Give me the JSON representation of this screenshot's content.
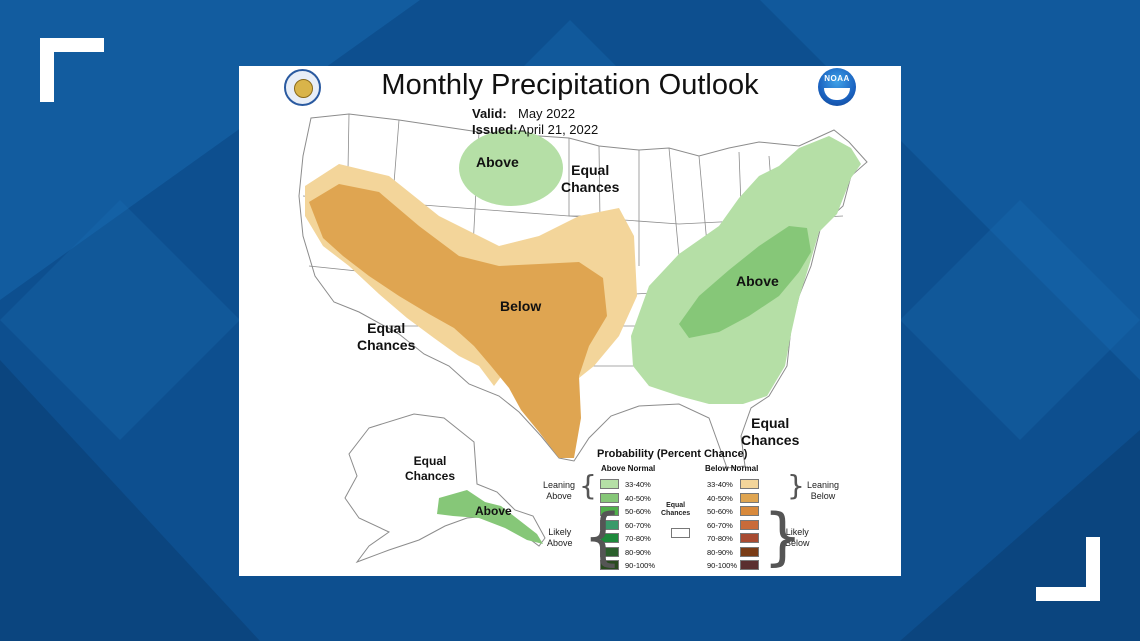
{
  "frame": {
    "background_color": "#0d4f8f",
    "corner_color": "#ffffff"
  },
  "map": {
    "title": "Monthly Precipitation Outlook",
    "valid_label": "Valid:",
    "valid_value": "May 2022",
    "issued_label": "Issued:",
    "issued_value": "April 21, 2022",
    "logos": {
      "left": "doc-seal-icon",
      "right": "noaa-logo-icon",
      "noaa_text": "NOAA"
    },
    "region_labels": {
      "north_above": "Above",
      "equal_chances_north": [
        "Equal",
        "Chances"
      ],
      "below": "Below",
      "equal_chances_west": [
        "Equal",
        "Chances"
      ],
      "east_above": "Above",
      "equal_chances_southeast": [
        "Equal",
        "Chances"
      ],
      "alaska_equal_chances": [
        "Equal",
        "Chances"
      ],
      "alaska_above": "Above"
    },
    "colors": {
      "above_33_40": "#b5dfa6",
      "above_40_50": "#86c778",
      "below_33_40": "#f3d59a",
      "below_40_50": "#dfa551",
      "land": "#ffffff",
      "borders": "#8c8c8c"
    }
  },
  "legend": {
    "title": "Probability (Percent Chance)",
    "above_header": "Above Normal",
    "below_header": "Below Normal",
    "equal_label": [
      "Equal",
      "Chances"
    ],
    "leaning_above": [
      "Leaning",
      "Above"
    ],
    "likely_above": [
      "Likely",
      "Above"
    ],
    "leaning_below": [
      "Leaning",
      "Below"
    ],
    "likely_below": [
      "Likely",
      "Below"
    ],
    "above": [
      {
        "range": "33-40%",
        "color": "#b5dfa6"
      },
      {
        "range": "40-50%",
        "color": "#86c778"
      },
      {
        "range": "50-60%",
        "color": "#4fb04a"
      },
      {
        "range": "60-70%",
        "color": "#3a9a6a"
      },
      {
        "range": "70-80%",
        "color": "#1e8a3c"
      },
      {
        "range": "80-90%",
        "color": "#2b5f2c"
      },
      {
        "range": "90-100%",
        "color": "#284a1e"
      }
    ],
    "below": [
      {
        "range": "33-40%",
        "color": "#f3d59a"
      },
      {
        "range": "40-50%",
        "color": "#dfa551"
      },
      {
        "range": "50-60%",
        "color": "#d98a3c"
      },
      {
        "range": "60-70%",
        "color": "#c96b3a"
      },
      {
        "range": "70-80%",
        "color": "#a84b32"
      },
      {
        "range": "80-90%",
        "color": "#7a3c16"
      },
      {
        "range": "90-100%",
        "color": "#5a2f2f"
      }
    ]
  }
}
